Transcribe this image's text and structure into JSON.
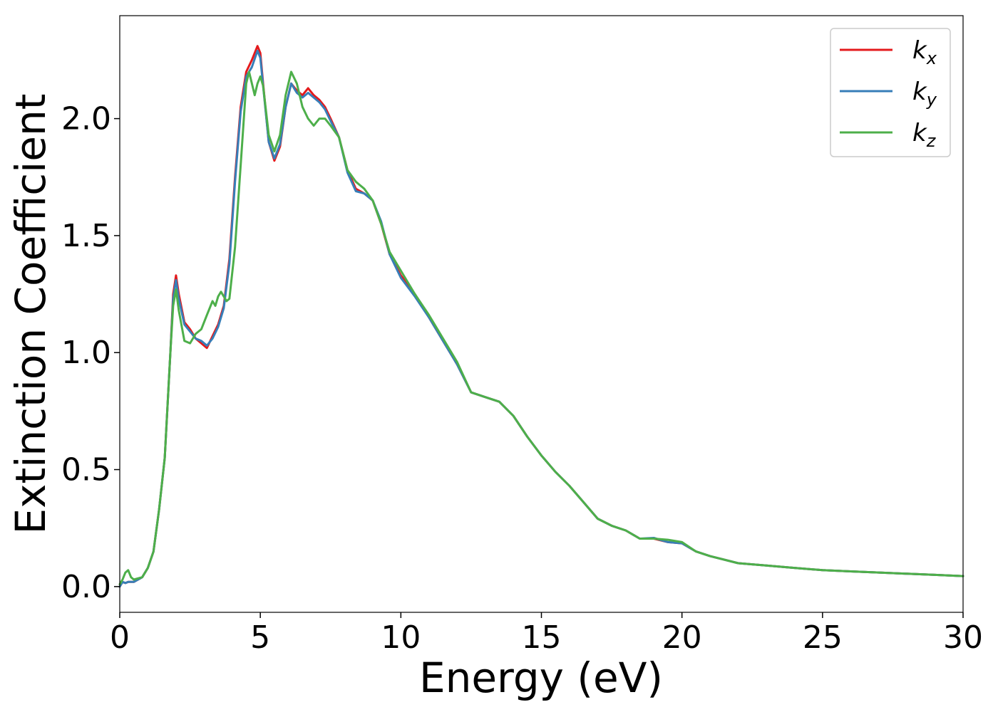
{
  "chart_data": {
    "type": "line",
    "xlabel": "Energy (eV)",
    "ylabel": "Extinction Coefficient",
    "xlim": [
      0,
      30
    ],
    "ylim": [
      -0.11,
      2.44
    ],
    "xticks": [
      0,
      5,
      10,
      15,
      20,
      25,
      30
    ],
    "yticks": [
      0.0,
      0.5,
      1.0,
      1.5,
      2.0
    ],
    "xtick_labels": [
      "0",
      "5",
      "10",
      "15",
      "20",
      "25",
      "30"
    ],
    "ytick_labels": [
      "0.0",
      "0.5",
      "1.0",
      "1.5",
      "2.0"
    ],
    "grid": false,
    "legend_position": "top-right",
    "series": [
      {
        "name": "k",
        "subscript": "x",
        "color": "#e41a1c",
        "x": [
          0,
          0.1,
          0.2,
          0.3,
          0.5,
          0.8,
          1.0,
          1.2,
          1.4,
          1.6,
          1.8,
          1.9,
          2.0,
          2.1,
          2.3,
          2.5,
          2.7,
          2.9,
          3.1,
          3.3,
          3.5,
          3.7,
          3.9,
          4.1,
          4.3,
          4.5,
          4.7,
          4.9,
          5.0,
          5.1,
          5.3,
          5.5,
          5.7,
          5.9,
          6.1,
          6.3,
          6.5,
          6.7,
          6.9,
          7.1,
          7.3,
          7.5,
          7.8,
          8.1,
          8.4,
          8.7,
          9.0,
          9.3,
          9.6,
          10.0,
          10.5,
          11.0,
          11.5,
          12.0,
          12.5,
          13.0,
          13.5,
          14.0,
          14.5,
          15.0,
          15.5,
          16.0,
          16.5,
          17.0,
          17.5,
          18.0,
          18.5,
          19.0,
          19.5,
          20.0,
          20.5,
          21.0,
          22.0,
          23.0,
          24.0,
          25.0,
          26.0,
          27.0,
          28.0,
          29.0,
          30.0
        ],
        "values": [
          0.0,
          0.02,
          0.015,
          0.02,
          0.02,
          0.04,
          0.08,
          0.15,
          0.33,
          0.55,
          1.0,
          1.25,
          1.33,
          1.25,
          1.13,
          1.1,
          1.06,
          1.04,
          1.02,
          1.07,
          1.12,
          1.2,
          1.4,
          1.75,
          2.05,
          2.2,
          2.25,
          2.31,
          2.28,
          2.15,
          1.9,
          1.82,
          1.88,
          2.05,
          2.15,
          2.12,
          2.1,
          2.13,
          2.1,
          2.08,
          2.05,
          2.0,
          1.92,
          1.78,
          1.7,
          1.68,
          1.65,
          1.55,
          1.42,
          1.33,
          1.25,
          1.15,
          1.05,
          0.95,
          0.83,
          0.81,
          0.79,
          0.73,
          0.64,
          0.56,
          0.49,
          0.43,
          0.36,
          0.29,
          0.26,
          0.24,
          0.205,
          0.205,
          0.19,
          0.185,
          0.15,
          0.13,
          0.1,
          0.09,
          0.08,
          0.07,
          0.065,
          0.06,
          0.055,
          0.05,
          0.045
        ]
      },
      {
        "name": "k",
        "subscript": "y",
        "color": "#377eb8",
        "x": [
          0,
          0.1,
          0.2,
          0.3,
          0.5,
          0.8,
          1.0,
          1.2,
          1.4,
          1.6,
          1.8,
          1.9,
          2.0,
          2.1,
          2.3,
          2.5,
          2.7,
          2.9,
          3.1,
          3.3,
          3.5,
          3.7,
          3.9,
          4.1,
          4.3,
          4.5,
          4.7,
          4.9,
          5.0,
          5.1,
          5.3,
          5.5,
          5.7,
          5.9,
          6.1,
          6.3,
          6.5,
          6.7,
          6.9,
          7.1,
          7.3,
          7.5,
          7.8,
          8.1,
          8.4,
          8.7,
          9.0,
          9.3,
          9.6,
          10.0,
          10.5,
          11.0,
          11.5,
          12.0,
          12.5,
          13.0,
          13.5,
          14.0,
          14.5,
          15.0,
          15.5,
          16.0,
          16.5,
          17.0,
          17.5,
          18.0,
          18.5,
          19.0,
          19.5,
          20.0,
          20.5,
          21.0,
          22.0,
          23.0,
          24.0,
          25.0,
          26.0,
          27.0,
          28.0,
          29.0,
          30.0
        ],
        "values": [
          0.0,
          0.02,
          0.015,
          0.02,
          0.02,
          0.04,
          0.08,
          0.15,
          0.33,
          0.55,
          1.0,
          1.23,
          1.31,
          1.23,
          1.12,
          1.09,
          1.06,
          1.05,
          1.03,
          1.06,
          1.11,
          1.19,
          1.38,
          1.73,
          2.03,
          2.18,
          2.22,
          2.29,
          2.26,
          2.14,
          1.9,
          1.83,
          1.89,
          2.05,
          2.15,
          2.11,
          2.09,
          2.11,
          2.09,
          2.07,
          2.04,
          1.99,
          1.92,
          1.77,
          1.69,
          1.68,
          1.65,
          1.56,
          1.42,
          1.32,
          1.24,
          1.15,
          1.05,
          0.95,
          0.83,
          0.81,
          0.79,
          0.73,
          0.64,
          0.56,
          0.49,
          0.43,
          0.36,
          0.29,
          0.26,
          0.24,
          0.205,
          0.208,
          0.19,
          0.185,
          0.15,
          0.13,
          0.1,
          0.09,
          0.08,
          0.07,
          0.065,
          0.06,
          0.055,
          0.05,
          0.045
        ]
      },
      {
        "name": "k",
        "subscript": "z",
        "color": "#4daf4a",
        "x": [
          0,
          0.1,
          0.2,
          0.3,
          0.4,
          0.5,
          0.8,
          1.0,
          1.2,
          1.4,
          1.6,
          1.8,
          1.9,
          2.0,
          2.1,
          2.3,
          2.5,
          2.7,
          2.9,
          3.1,
          3.3,
          3.4,
          3.5,
          3.6,
          3.8,
          3.9,
          4.1,
          4.3,
          4.5,
          4.6,
          4.8,
          4.9,
          5.0,
          5.1,
          5.3,
          5.5,
          5.7,
          5.9,
          6.1,
          6.3,
          6.5,
          6.7,
          6.9,
          7.1,
          7.3,
          7.5,
          7.8,
          8.1,
          8.4,
          8.7,
          9.0,
          9.3,
          9.6,
          10.0,
          10.5,
          11.0,
          11.5,
          12.0,
          12.5,
          13.0,
          13.5,
          14.0,
          14.5,
          15.0,
          15.5,
          16.0,
          16.5,
          17.0,
          17.5,
          18.0,
          18.5,
          19.0,
          19.5,
          20.0,
          20.5,
          21.0,
          22.0,
          23.0,
          24.0,
          25.0,
          26.0,
          27.0,
          28.0,
          29.0,
          30.0
        ],
        "values": [
          0.01,
          0.03,
          0.06,
          0.07,
          0.04,
          0.03,
          0.04,
          0.08,
          0.15,
          0.33,
          0.55,
          1.0,
          1.2,
          1.27,
          1.18,
          1.05,
          1.04,
          1.08,
          1.1,
          1.16,
          1.22,
          1.2,
          1.24,
          1.26,
          1.22,
          1.23,
          1.45,
          1.8,
          2.15,
          2.2,
          2.1,
          2.15,
          2.18,
          2.14,
          1.93,
          1.86,
          1.93,
          2.1,
          2.2,
          2.15,
          2.05,
          2.0,
          1.97,
          2.0,
          2.0,
          1.97,
          1.92,
          1.78,
          1.73,
          1.7,
          1.65,
          1.55,
          1.43,
          1.35,
          1.25,
          1.16,
          1.06,
          0.96,
          0.83,
          0.81,
          0.79,
          0.73,
          0.64,
          0.56,
          0.49,
          0.43,
          0.36,
          0.29,
          0.26,
          0.24,
          0.205,
          0.205,
          0.2,
          0.19,
          0.15,
          0.13,
          0.1,
          0.09,
          0.08,
          0.07,
          0.065,
          0.06,
          0.055,
          0.05,
          0.045
        ]
      }
    ]
  }
}
